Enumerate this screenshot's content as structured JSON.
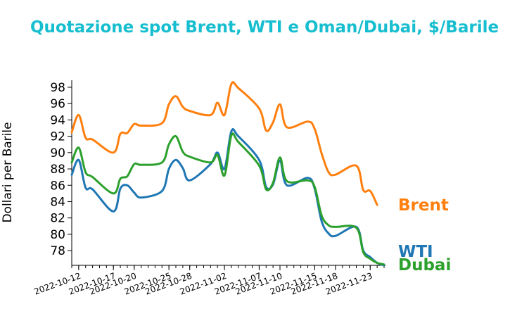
{
  "chart_data": {
    "type": "line",
    "title": "Quotazione spot Brent, WTI e Oman/Dubai, $/Barile",
    "xlabel": "",
    "ylabel": "Dollari per Barile",
    "ylim": [
      76.2,
      98.6
    ],
    "yticks": [
      78,
      80,
      82,
      84,
      86,
      88,
      90,
      92,
      94,
      96,
      98
    ],
    "xticks": [
      "2022-10-12",
      "2022-10-17",
      "2022-10-20",
      "2022-10-25",
      "2022-10-28",
      "2022-11-02",
      "2022-11-07",
      "2022-11-10",
      "2022-11-15",
      "2022-11-18",
      "2022-11-23"
    ],
    "x": [
      "2022-10-11",
      "2022-10-12",
      "2022-10-13",
      "2022-10-14",
      "2022-10-17",
      "2022-10-18",
      "2022-10-19",
      "2022-10-20",
      "2022-10-21",
      "2022-10-24",
      "2022-10-25",
      "2022-10-26",
      "2022-10-27",
      "2022-10-28",
      "2022-10-31",
      "2022-11-01",
      "2022-11-02",
      "2022-11-03",
      "2022-11-04",
      "2022-11-07",
      "2022-11-08",
      "2022-11-09",
      "2022-11-10",
      "2022-11-11",
      "2022-11-14",
      "2022-11-15",
      "2022-11-16",
      "2022-11-17",
      "2022-11-18",
      "2022-11-21",
      "2022-11-22",
      "2022-11-23",
      "2022-11-24",
      "2022-11-25"
    ],
    "grid": false,
    "legend": "none",
    "series": [
      {
        "name": "Brent",
        "color": "#ff7f0e",
        "values": [
          92.5,
          94.6,
          91.8,
          91.6,
          90.0,
          92.3,
          92.4,
          93.5,
          93.3,
          93.6,
          95.9,
          96.9,
          95.6,
          95.1,
          94.6,
          96.1,
          94.6,
          98.4,
          97.9,
          95.4,
          92.7,
          93.7,
          95.9,
          93.1,
          93.8,
          92.9,
          89.9,
          87.6,
          87.3,
          88.4,
          85.4,
          85.3,
          83.6,
          null
        ]
      },
      {
        "name": "WTI",
        "color": "#1f77b4",
        "values": [
          87.3,
          89.1,
          85.7,
          85.5,
          82.8,
          85.6,
          86.0,
          85.1,
          84.5,
          85.3,
          88.0,
          89.1,
          88.1,
          86.6,
          88.6,
          90.0,
          88.0,
          92.6,
          92.0,
          89.1,
          85.8,
          86.1,
          89.0,
          86.0,
          86.9,
          85.6,
          81.6,
          80.1,
          79.8,
          80.9,
          78.0,
          77.2,
          76.5,
          76.2
        ]
      },
      {
        "name": "Dubai",
        "color": "#2ca02c",
        "values": [
          88.8,
          90.6,
          87.6,
          87.0,
          85.0,
          86.8,
          87.1,
          88.6,
          88.5,
          88.8,
          91.0,
          92.0,
          90.1,
          89.5,
          88.8,
          89.7,
          87.2,
          92.1,
          91.3,
          88.4,
          85.5,
          86.3,
          89.4,
          86.5,
          86.6,
          85.8,
          82.3,
          81.1,
          80.9,
          80.8,
          77.8,
          77.0,
          76.5,
          76.3
        ]
      }
    ]
  }
}
